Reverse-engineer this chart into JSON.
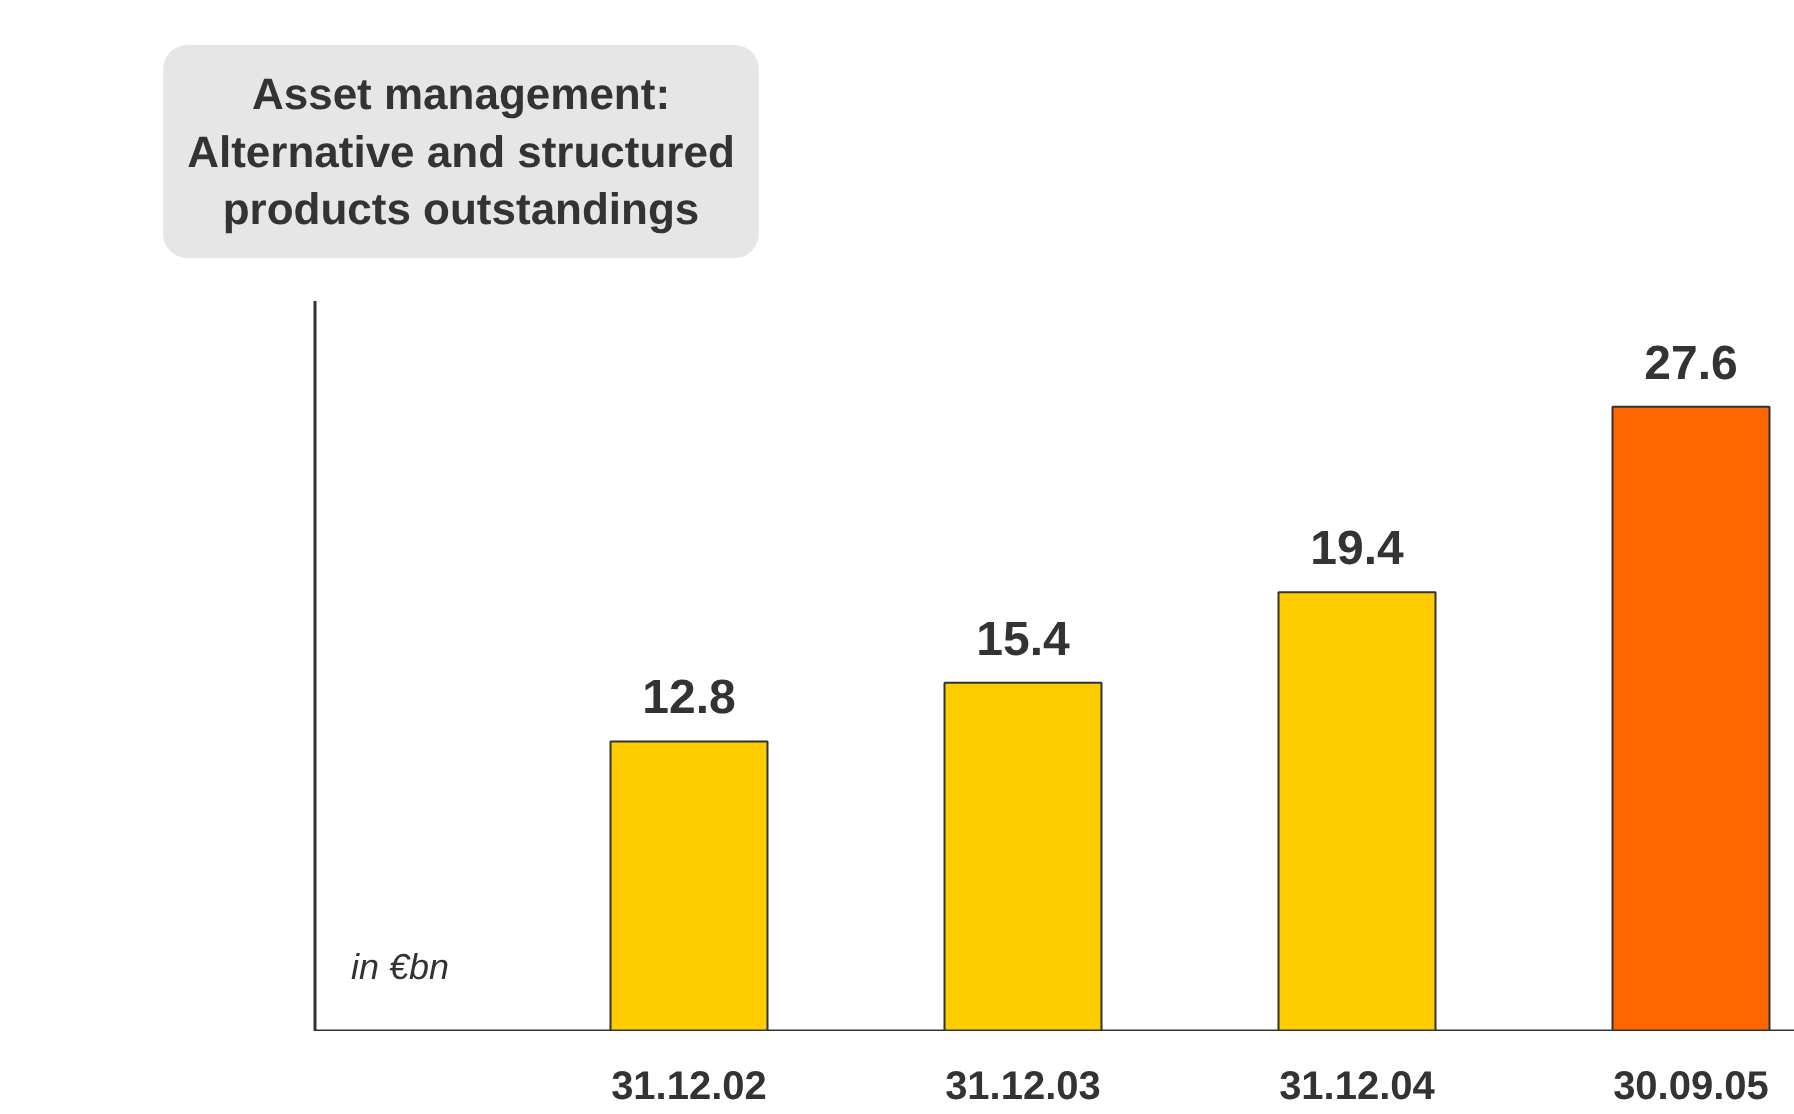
{
  "chart_data": {
    "type": "bar",
    "title": "Asset management:\nAlternative and structured\nproducts outstandings",
    "categories": [
      "31.12.02",
      "31.12.03",
      "31.12.04",
      "30.09.05"
    ],
    "values": [
      12.8,
      15.4,
      19.4,
      27.6
    ],
    "colors": [
      "#ffcc00",
      "#ffcc00",
      "#ffcc00",
      "#ff6600"
    ],
    "data_labels": true,
    "grid": false,
    "annotations": [
      "in €bn"
    ]
  }
}
